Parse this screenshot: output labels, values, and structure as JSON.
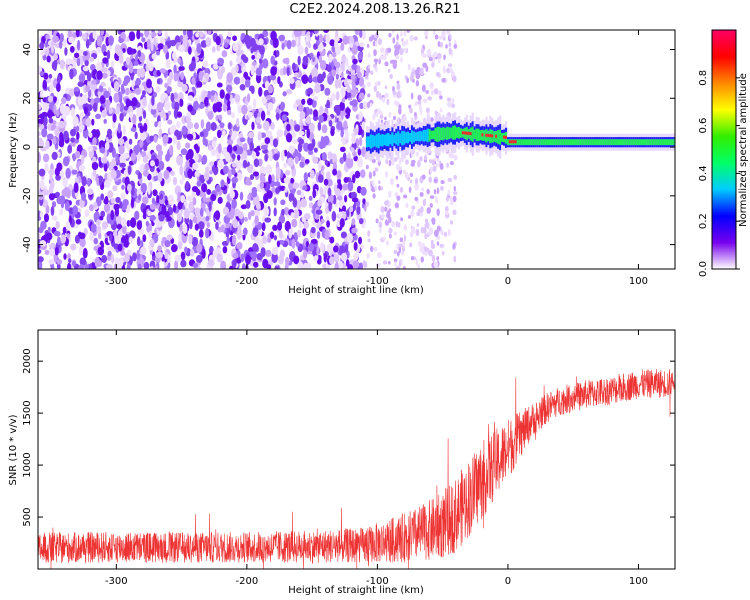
{
  "title": "C2E2.2024.208.13.26.R21",
  "chart_data": [
    {
      "type": "heatmap",
      "title": "",
      "xlabel": "Height of straight line (km)",
      "ylabel": "Frequency (Hz)",
      "xlim": [
        -360,
        128
      ],
      "ylim": [
        -50,
        48
      ],
      "xticks": [
        -300,
        -200,
        -100,
        0,
        100
      ],
      "yticks": [
        -40,
        -20,
        0,
        20,
        40
      ],
      "colorbar": {
        "label": "Normalized spectral amplitude",
        "range": [
          0.0,
          1.0
        ],
        "ticks": [
          0.0,
          0.2,
          0.4,
          0.6,
          0.8
        ],
        "colors": [
          "#ffffff",
          "#7700ee",
          "#0000ff",
          "#00ccff",
          "#00ff66",
          "#33ee00",
          "#ffff00",
          "#ff8800",
          "#ff0000",
          "#ff0066"
        ]
      },
      "description_points": {
        "noise_region_x": [
          -360,
          -110
        ],
        "transition_x": [
          -110,
          -40
        ],
        "signal_line_freq_hz": 2,
        "signal_peak_x": -40,
        "signal_peak_freq_hz": 6
      }
    },
    {
      "type": "line",
      "title": "",
      "xlabel": "Height of straight line (km)",
      "ylabel": "SNR (10 * v/v)",
      "xlim": [
        -360,
        128
      ],
      "ylim": [
        0,
        2300
      ],
      "xticks": [
        -300,
        -200,
        -100,
        0,
        100
      ],
      "yticks": [
        500,
        1000,
        1500,
        2000
      ],
      "series": [
        {
          "name": "SNR",
          "color": "#ee3333",
          "x": [
            -360,
            -300,
            -250,
            -200,
            -150,
            -110,
            -90,
            -70,
            -50,
            -40,
            -30,
            -20,
            -10,
            0,
            10,
            20,
            30,
            40,
            60,
            80,
            100,
            128
          ],
          "values": [
            200,
            210,
            205,
            210,
            215,
            230,
            270,
            330,
            420,
            520,
            680,
            850,
            1000,
            1150,
            1300,
            1450,
            1550,
            1620,
            1680,
            1720,
            1780,
            1790
          ],
          "noise_amplitude": [
            150,
            150,
            150,
            150,
            160,
            170,
            220,
            260,
            320,
            360,
            380,
            380,
            340,
            300,
            220,
            160,
            150,
            140,
            140,
            140,
            140,
            140
          ]
        }
      ]
    }
  ]
}
